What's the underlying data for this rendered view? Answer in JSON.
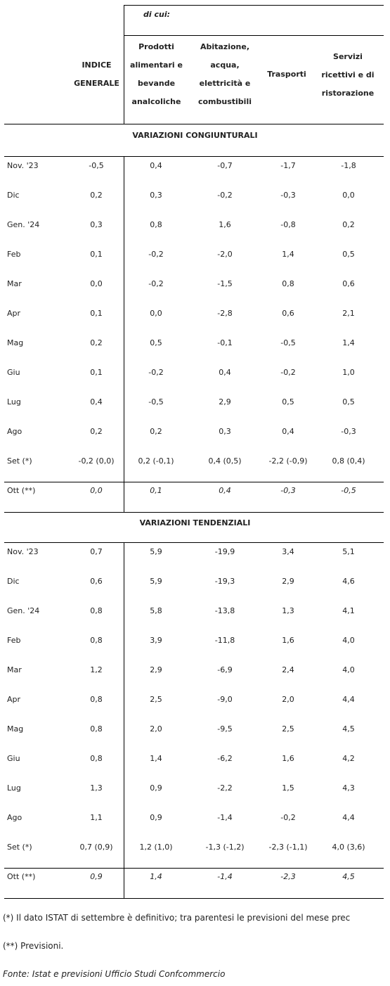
{
  "header": {
    "di_cui": "di cui:",
    "col0": "INDICE GENERALE",
    "col1": "Prodotti alimentari e bevande analcoliche",
    "col2": "Abitazione, acqua, elettricità e combustibili",
    "col3": "Trasporti",
    "col4": "Servizi ricettivi e di ristorazione"
  },
  "sections": [
    {
      "title": "VARIAZIONI CONGIUNTURALI",
      "rows": [
        {
          "label": "Nov. '23",
          "values": [
            "-0,5",
            "0,4",
            "-0,7",
            "-1,7",
            "-1,8"
          ]
        },
        {
          "label": "Dic",
          "values": [
            "0,2",
            "0,3",
            "-0,2",
            "-0,3",
            "0,0"
          ]
        },
        {
          "label": "Gen. '24",
          "values": [
            "0,3",
            "0,8",
            "1,6",
            "-0,8",
            "0,2"
          ]
        },
        {
          "label": "Feb",
          "values": [
            "0,1",
            "-0,2",
            "-2,0",
            "1,4",
            "0,5"
          ]
        },
        {
          "label": "Mar",
          "values": [
            "0,0",
            "-0,2",
            "-1,5",
            "0,8",
            "0,6"
          ]
        },
        {
          "label": "Apr",
          "values": [
            "0,1",
            "0,0",
            "-2,8",
            "0,6",
            "2,1"
          ]
        },
        {
          "label": "Mag",
          "values": [
            "0,2",
            "0,5",
            "-0,1",
            "-0,5",
            "1,4"
          ]
        },
        {
          "label": "Giu",
          "values": [
            "0,1",
            "-0,2",
            "0,4",
            "-0,2",
            "1,0"
          ]
        },
        {
          "label": "Lug",
          "values": [
            "0,4",
            "-0,5",
            "2,9",
            "0,5",
            "0,5"
          ]
        },
        {
          "label": "Ago",
          "values": [
            "0,2",
            "0,2",
            "0,3",
            "0,4",
            "-0,3"
          ]
        },
        {
          "label": "Set (*)",
          "values": [
            "-0,2 (0,0)",
            "0,2 (-0,1)",
            "0,4 (0,5)",
            "-2,2 (-0,9)",
            "0,8 (0,4)"
          ]
        }
      ],
      "forecast": {
        "label": "Ott (**)",
        "values": [
          "0,0",
          "0,1",
          "0,4",
          "-0,3",
          "-0,5"
        ]
      }
    },
    {
      "title": "VARIAZIONI TENDENZIALI",
      "rows": [
        {
          "label": "Nov. '23",
          "values": [
            "0,7",
            "5,9",
            "-19,9",
            "3,4",
            "5,1"
          ]
        },
        {
          "label": "Dic",
          "values": [
            "0,6",
            "5,9",
            "-19,3",
            "2,9",
            "4,6"
          ]
        },
        {
          "label": "Gen. '24",
          "values": [
            "0,8",
            "5,8",
            "-13,8",
            "1,3",
            "4,1"
          ]
        },
        {
          "label": "Feb",
          "values": [
            "0,8",
            "3,9",
            "-11,8",
            "1,6",
            "4,0"
          ]
        },
        {
          "label": "Mar",
          "values": [
            "1,2",
            "2,9",
            "-6,9",
            "2,4",
            "4,0"
          ]
        },
        {
          "label": "Apr",
          "values": [
            "0,8",
            "2,5",
            "-9,0",
            "2,0",
            "4,4"
          ]
        },
        {
          "label": "Mag",
          "values": [
            "0,8",
            "2,0",
            "-9,5",
            "2,5",
            "4,5"
          ]
        },
        {
          "label": "Giu",
          "values": [
            "0,8",
            "1,4",
            "-6,2",
            "1,6",
            "4,2"
          ]
        },
        {
          "label": "Lug",
          "values": [
            "1,3",
            "0,9",
            "-2,2",
            "1,5",
            "4,3"
          ]
        },
        {
          "label": "Ago",
          "values": [
            "1,1",
            "0,9",
            "-1,4",
            "-0,2",
            "4,4"
          ]
        },
        {
          "label": "Set (*)",
          "values": [
            "0,7 (0,9)",
            "1,2 (1,0)",
            "-1,3 (-1,2)",
            "-2,3 (-1,1)",
            "4,0 (3,6)"
          ]
        }
      ],
      "forecast": {
        "label": "Ott (**)",
        "values": [
          "0,9",
          "1,4",
          "-1,4",
          "-2,3",
          "4,5"
        ]
      }
    }
  ],
  "notes": {
    "note1": "(*)  Il dato ISTAT di settembre è definitivo; tra parentesi le previsioni del mese prec",
    "note2": "(**) Previsioni.",
    "source": "Fonte: Istat e previsioni Ufficio Studi Confcommercio"
  }
}
